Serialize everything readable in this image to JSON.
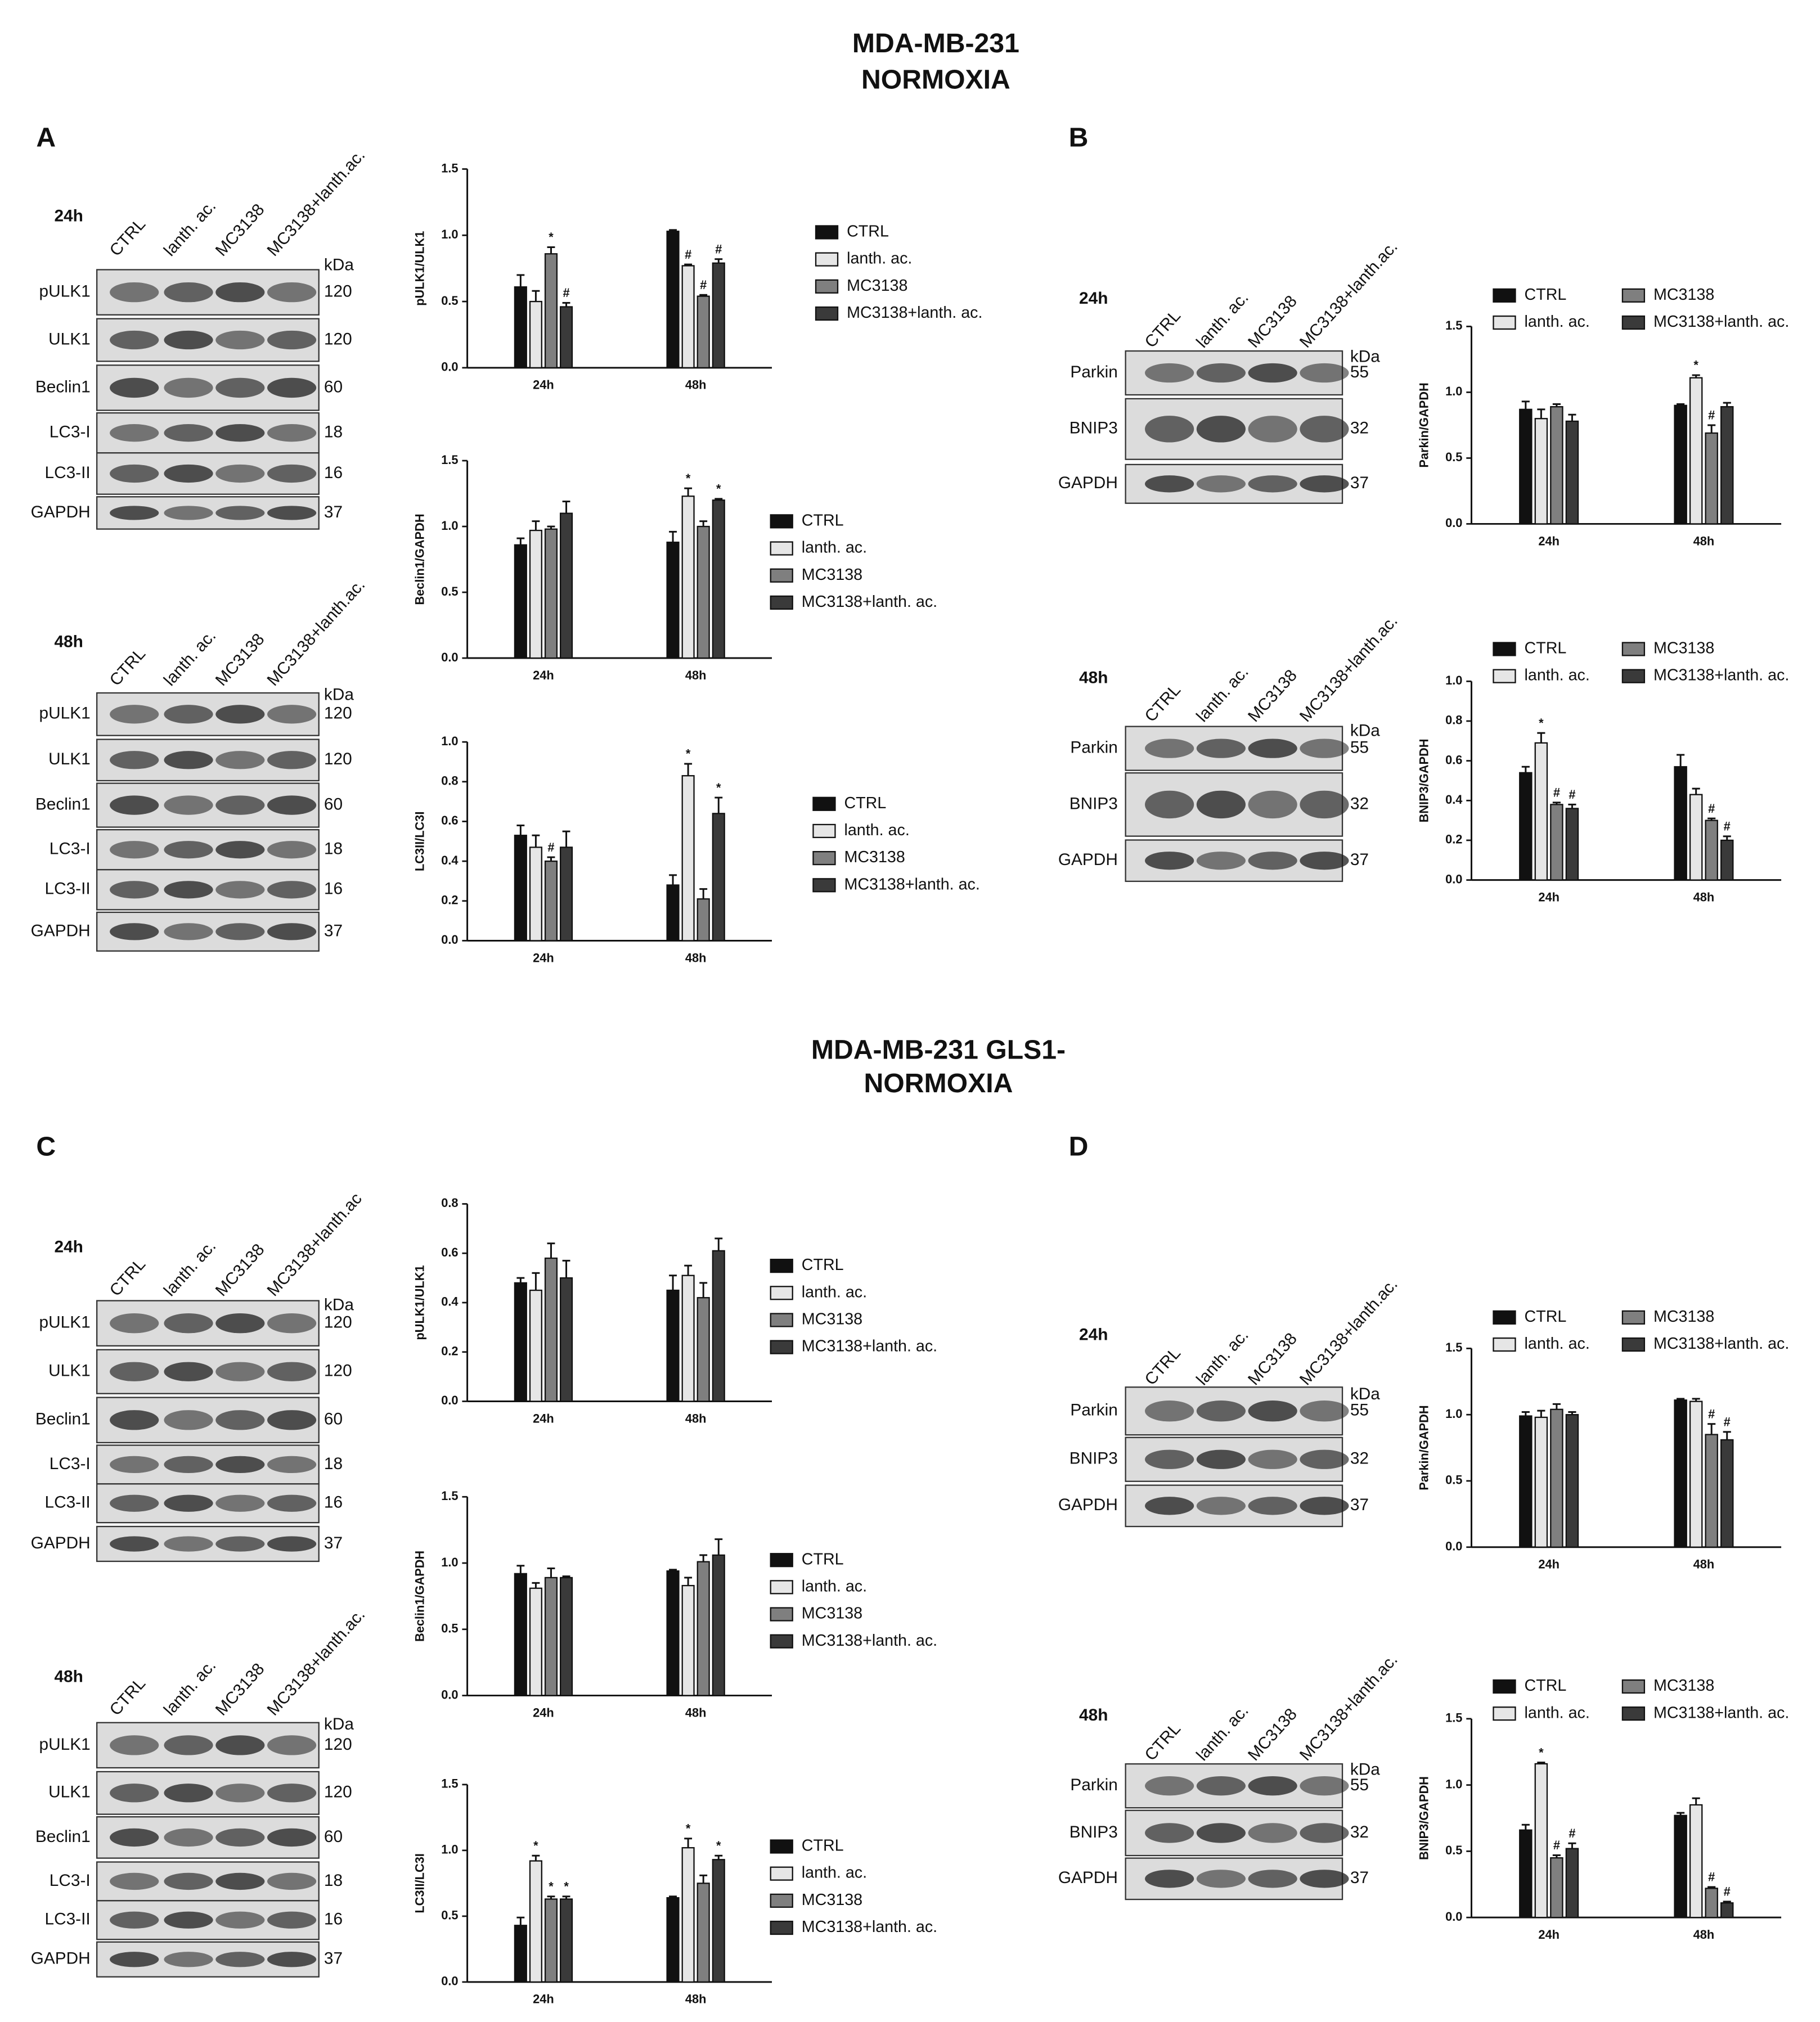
{
  "headings": [
    {
      "lines": [
        "MDA-MB-231",
        "NORMOXIA"
      ]
    },
    {
      "lines": [
        "MDA-MB-231 GLS1-",
        "NORMOXIA"
      ]
    }
  ],
  "panels": [
    "A",
    "B",
    "C",
    "D"
  ],
  "blots": [
    {
      "time": "24h",
      "kda_label": "kDa",
      "lanes": [
        "CTRL",
        "lanth. ac.",
        "MC3138",
        "MC3138+lanth.ac."
      ],
      "rows": [
        {
          "name": "pULK1",
          "kda": 120
        },
        {
          "name": "ULK1",
          "kda": 120
        },
        {
          "name": "Beclin1",
          "kda": 60
        },
        {
          "name": "LC3-I",
          "kda": 18
        },
        {
          "name": "LC3-II",
          "kda": 16
        },
        {
          "name": "GAPDH",
          "kda": 37
        }
      ]
    },
    {
      "time": "48h",
      "kda_label": "kDa",
      "lanes": [
        "CTRL",
        "lanth. ac.",
        "MC3138",
        "MC3138+lanth.ac."
      ],
      "rows": [
        {
          "name": "pULK1",
          "kda": 120
        },
        {
          "name": "ULK1",
          "kda": 120
        },
        {
          "name": "Beclin1",
          "kda": 60
        },
        {
          "name": "LC3-I",
          "kda": 18
        },
        {
          "name": "LC3-II",
          "kda": 16
        },
        {
          "name": "GAPDH",
          "kda": 37
        }
      ]
    },
    {
      "time": "24h",
      "kda_label": "kDa",
      "lanes": [
        "CTRL",
        "lanth. ac.",
        "MC3138",
        "MC3138+lanth.ac."
      ],
      "rows": [
        {
          "name": "Parkin",
          "kda": 55
        },
        {
          "name": "BNIP3",
          "kda": 32
        },
        {
          "name": "GAPDH",
          "kda": 37
        }
      ]
    },
    {
      "time": "48h",
      "kda_label": "kDa",
      "lanes": [
        "CTRL",
        "lanth. ac.",
        "MC3138",
        "MC3138+lanth.ac."
      ],
      "rows": [
        {
          "name": "Parkin",
          "kda": 55
        },
        {
          "name": "BNIP3",
          "kda": 32
        },
        {
          "name": "GAPDH",
          "kda": 37
        }
      ]
    },
    {
      "time": "24h",
      "kda_label": "kDa",
      "lanes": [
        "CTRL",
        "lanth. ac.",
        "MC3138",
        "MC3138+lanth.ac"
      ],
      "rows": [
        {
          "name": "pULK1",
          "kda": 120
        },
        {
          "name": "ULK1",
          "kda": 120
        },
        {
          "name": "Beclin1",
          "kda": 60
        },
        {
          "name": "LC3-I",
          "kda": 18
        },
        {
          "name": "LC3-II",
          "kda": 16
        },
        {
          "name": "GAPDH",
          "kda": 37
        }
      ]
    },
    {
      "time": "48h",
      "kda_label": "kDa",
      "lanes": [
        "CTRL",
        "lanth. ac.",
        "MC3138",
        "MC3138+lanth.ac."
      ],
      "rows": [
        {
          "name": "pULK1",
          "kda": 120
        },
        {
          "name": "ULK1",
          "kda": 120
        },
        {
          "name": "Beclin1",
          "kda": 60
        },
        {
          "name": "LC3-I",
          "kda": 18
        },
        {
          "name": "LC3-II",
          "kda": 16
        },
        {
          "name": "GAPDH",
          "kda": 37
        }
      ]
    },
    {
      "time": "24h",
      "kda_label": "kDa",
      "lanes": [
        "CTRL",
        "lanth. ac.",
        "MC3138",
        "MC3138+lanth.ac."
      ],
      "rows": [
        {
          "name": "Parkin",
          "kda": 55
        },
        {
          "name": "BNIP3",
          "kda": 32
        },
        {
          "name": "GAPDH",
          "kda": 37
        }
      ]
    },
    {
      "time": "48h",
      "kda_label": "kDa",
      "lanes": [
        "CTRL",
        "lanth. ac.",
        "MC3138",
        "MC3138+lanth.ac."
      ],
      "rows": [
        {
          "name": "Parkin",
          "kda": 55
        },
        {
          "name": "BNIP3",
          "kda": 32
        },
        {
          "name": "GAPDH",
          "kda": 37
        }
      ]
    }
  ],
  "chart_data": [
    {
      "type": "bar",
      "y_label": "pULK1/ULK1",
      "categories": [
        "24h",
        "48h"
      ],
      "ylim": [
        0,
        1.5
      ],
      "yticks": [
        {
          "value": 0,
          "label": "0.0"
        },
        0.5,
        {
          "value": 1,
          "label": "1.0"
        },
        1.5
      ],
      "series": [
        {
          "name": "CTRL",
          "color": "#111111",
          "values": [
            0.61,
            1.03
          ],
          "errors": [
            0.09,
            0.01
          ]
        },
        {
          "name": "lanth. ac.",
          "color": "#e6e6e6",
          "values": [
            0.5,
            0.77
          ],
          "errors": [
            0.08,
            0.01
          ],
          "annotations": [
            null,
            "#"
          ]
        },
        {
          "name": "MC3138",
          "color": "#7f7f7f",
          "values": [
            0.86,
            0.54
          ],
          "errors": [
            0.05,
            0.01
          ],
          "annotations": [
            "*",
            "#"
          ]
        },
        {
          "name": "MC3138+lanth. ac.",
          "color": "#3a3a3a",
          "values": [
            0.46,
            0.79
          ],
          "errors": [
            0.03,
            0.03
          ],
          "annotations": [
            "#",
            "#"
          ]
        }
      ]
    },
    {
      "type": "bar",
      "y_label": "Beclin1/GAPDH",
      "categories": [
        "24h",
        "48h"
      ],
      "ylim": [
        0,
        1.5
      ],
      "yticks": [
        {
          "value": 0,
          "label": "0.0"
        },
        0.5,
        {
          "value": 1,
          "label": "1.0"
        },
        1.5
      ],
      "series": [
        {
          "name": "CTRL",
          "color": "#111111",
          "values": [
            0.86,
            0.88
          ],
          "errors": [
            0.05,
            0.08
          ]
        },
        {
          "name": "lanth. ac.",
          "color": "#e6e6e6",
          "values": [
            0.97,
            1.23
          ],
          "errors": [
            0.07,
            0.06
          ],
          "annotations": [
            null,
            "*"
          ]
        },
        {
          "name": "MC3138",
          "color": "#7f7f7f",
          "values": [
            0.98,
            1.0
          ],
          "errors": [
            0.02,
            0.04
          ]
        },
        {
          "name": "MC3138+lanth. ac.",
          "color": "#3a3a3a",
          "values": [
            1.1,
            1.2
          ],
          "errors": [
            0.09,
            0.01
          ],
          "annotations": [
            null,
            "*"
          ]
        }
      ]
    },
    {
      "type": "bar",
      "y_label": "LC3II/LC3I",
      "categories": [
        "24h",
        "48h"
      ],
      "ylim": [
        0,
        1
      ],
      "yticks": [
        {
          "value": 0,
          "label": "0.0"
        },
        0.2,
        0.4,
        0.6,
        0.8,
        {
          "value": 1,
          "label": "1.0"
        }
      ],
      "series": [
        {
          "name": "CTRL",
          "color": "#111111",
          "values": [
            0.53,
            0.28
          ],
          "errors": [
            0.05,
            0.05
          ]
        },
        {
          "name": "lanth. ac.",
          "color": "#e6e6e6",
          "values": [
            0.47,
            0.83
          ],
          "errors": [
            0.06,
            0.06
          ],
          "annotations": [
            null,
            "*"
          ]
        },
        {
          "name": "MC3138",
          "color": "#7f7f7f",
          "values": [
            0.4,
            0.21
          ],
          "errors": [
            0.02,
            0.05
          ],
          "annotations": [
            "#",
            null
          ]
        },
        {
          "name": "MC3138+lanth. ac.",
          "color": "#3a3a3a",
          "values": [
            0.47,
            0.64
          ],
          "errors": [
            0.08,
            0.08
          ],
          "annotations": [
            null,
            "*"
          ]
        }
      ]
    },
    {
      "type": "bar",
      "y_label": "Parkin/GAPDH",
      "categories": [
        "24h",
        "48h"
      ],
      "ylim": [
        0,
        1.5
      ],
      "yticks": [
        {
          "value": 0,
          "label": "0.0"
        },
        0.5,
        {
          "value": 1,
          "label": "1.0"
        },
        1.5
      ],
      "series": [
        {
          "name": "CTRL",
          "color": "#111111",
          "values": [
            0.87,
            0.9
          ],
          "errors": [
            0.06,
            0.01
          ]
        },
        {
          "name": "lanth. ac.",
          "color": "#e6e6e6",
          "values": [
            0.8,
            1.11
          ],
          "errors": [
            0.07,
            0.02
          ],
          "annotations": [
            null,
            "*"
          ]
        },
        {
          "name": "MC3138",
          "color": "#7f7f7f",
          "values": [
            0.89,
            0.69
          ],
          "errors": [
            0.02,
            0.06
          ],
          "annotations": [
            null,
            "#"
          ]
        },
        {
          "name": "MC3138+lanth. ac.",
          "color": "#3a3a3a",
          "values": [
            0.78,
            0.89
          ],
          "errors": [
            0.05,
            0.03
          ]
        }
      ]
    },
    {
      "type": "bar",
      "y_label": "BNIP3/GAPDH",
      "categories": [
        "24h",
        "48h"
      ],
      "ylim": [
        0,
        1
      ],
      "yticks": [
        {
          "value": 0,
          "label": "0.0"
        },
        0.2,
        0.4,
        0.6,
        0.8,
        {
          "value": 1,
          "label": "1.0"
        }
      ],
      "series": [
        {
          "name": "CTRL",
          "color": "#111111",
          "values": [
            0.54,
            0.57
          ],
          "errors": [
            0.03,
            0.06
          ]
        },
        {
          "name": "lanth. ac.",
          "color": "#e6e6e6",
          "values": [
            0.69,
            0.43
          ],
          "errors": [
            0.05,
            0.03
          ],
          "annotations": [
            "*",
            null
          ]
        },
        {
          "name": "MC3138",
          "color": "#7f7f7f",
          "values": [
            0.38,
            0.3
          ],
          "errors": [
            0.01,
            0.01
          ],
          "annotations": [
            "#",
            "#"
          ]
        },
        {
          "name": "MC3138+lanth. ac.",
          "color": "#3a3a3a",
          "values": [
            0.36,
            0.2
          ],
          "errors": [
            0.02,
            0.02
          ],
          "annotations": [
            "#",
            "#"
          ]
        }
      ]
    },
    {
      "type": "bar",
      "y_label": "pULK1/ULK1",
      "categories": [
        "24h",
        "48h"
      ],
      "ylim": [
        0,
        0.8
      ],
      "yticks": [
        {
          "value": 0,
          "label": "0.0"
        },
        0.2,
        0.4,
        0.6,
        0.8
      ],
      "series": [
        {
          "name": "CTRL",
          "color": "#111111",
          "values": [
            0.48,
            0.45
          ],
          "errors": [
            0.02,
            0.06
          ]
        },
        {
          "name": "lanth. ac.",
          "color": "#e6e6e6",
          "values": [
            0.45,
            0.51
          ],
          "errors": [
            0.07,
            0.04
          ]
        },
        {
          "name": "MC3138",
          "color": "#7f7f7f",
          "values": [
            0.58,
            0.42
          ],
          "errors": [
            0.06,
            0.06
          ]
        },
        {
          "name": "MC3138+lanth. ac.",
          "color": "#3a3a3a",
          "values": [
            0.5,
            0.61
          ],
          "errors": [
            0.07,
            0.05
          ]
        }
      ]
    },
    {
      "type": "bar",
      "y_label": "Beclin1/GAPDH",
      "categories": [
        "24h",
        "48h"
      ],
      "ylim": [
        0,
        1.5
      ],
      "yticks": [
        {
          "value": 0,
          "label": "0.0"
        },
        0.5,
        {
          "value": 1,
          "label": "1.0"
        },
        1.5
      ],
      "series": [
        {
          "name": "CTRL",
          "color": "#111111",
          "values": [
            0.92,
            0.94
          ],
          "errors": [
            0.06,
            0.01
          ]
        },
        {
          "name": "lanth. ac.",
          "color": "#e6e6e6",
          "values": [
            0.81,
            0.83
          ],
          "errors": [
            0.04,
            0.06
          ]
        },
        {
          "name": "MC3138",
          "color": "#7f7f7f",
          "values": [
            0.89,
            1.01
          ],
          "errors": [
            0.07,
            0.05
          ]
        },
        {
          "name": "MC3138+lanth. ac.",
          "color": "#3a3a3a",
          "values": [
            0.89,
            1.06
          ],
          "errors": [
            0.01,
            0.12
          ]
        }
      ]
    },
    {
      "type": "bar",
      "y_label": "LC3II/LC3I",
      "categories": [
        "24h",
        "48h"
      ],
      "ylim": [
        0,
        1.5
      ],
      "yticks": [
        {
          "value": 0,
          "label": "0.0"
        },
        0.5,
        {
          "value": 1,
          "label": "1.0"
        },
        1.5
      ],
      "series": [
        {
          "name": "CTRL",
          "color": "#111111",
          "values": [
            0.43,
            0.64
          ],
          "errors": [
            0.06,
            0.01
          ]
        },
        {
          "name": "lanth. ac.",
          "color": "#e6e6e6",
          "values": [
            0.92,
            1.02
          ],
          "errors": [
            0.04,
            0.07
          ],
          "annotations": [
            "*",
            "*"
          ]
        },
        {
          "name": "MC3138",
          "color": "#7f7f7f",
          "values": [
            0.63,
            0.75
          ],
          "errors": [
            0.02,
            0.06
          ],
          "annotations": [
            "*",
            null
          ]
        },
        {
          "name": "MC3138+lanth. ac.",
          "color": "#3a3a3a",
          "values": [
            0.63,
            0.93
          ],
          "errors": [
            0.02,
            0.03
          ],
          "annotations": [
            "*",
            "*"
          ]
        }
      ]
    },
    {
      "type": "bar",
      "y_label": "Parkin/GAPDH",
      "categories": [
        "24h",
        "48h"
      ],
      "ylim": [
        0,
        1.5
      ],
      "yticks": [
        {
          "value": 0,
          "label": "0.0"
        },
        0.5,
        {
          "value": 1,
          "label": "1.0"
        },
        1.5
      ],
      "series": [
        {
          "name": "CTRL",
          "color": "#111111",
          "values": [
            0.99,
            1.11
          ],
          "errors": [
            0.03,
            0.01
          ]
        },
        {
          "name": "lanth. ac.",
          "color": "#e6e6e6",
          "values": [
            0.98,
            1.1
          ],
          "errors": [
            0.05,
            0.02
          ]
        },
        {
          "name": "MC3138",
          "color": "#7f7f7f",
          "values": [
            1.04,
            0.85
          ],
          "errors": [
            0.04,
            0.08
          ],
          "annotations": [
            null,
            "#"
          ]
        },
        {
          "name": "MC3138+lanth. ac.",
          "color": "#3a3a3a",
          "values": [
            1.0,
            0.81
          ],
          "errors": [
            0.02,
            0.06
          ],
          "annotations": [
            null,
            "#"
          ]
        }
      ]
    },
    {
      "type": "bar",
      "y_label": "BNIP3/GAPDH",
      "categories": [
        "24h",
        "48h"
      ],
      "ylim": [
        0,
        1.5
      ],
      "yticks": [
        {
          "value": 0,
          "label": "0.0"
        },
        0.5,
        {
          "value": 1,
          "label": "1.0"
        },
        1.5
      ],
      "series": [
        {
          "name": "CTRL",
          "color": "#111111",
          "values": [
            0.66,
            0.77
          ],
          "errors": [
            0.04,
            0.02
          ]
        },
        {
          "name": "lanth. ac.",
          "color": "#e6e6e6",
          "values": [
            1.16,
            0.85
          ],
          "errors": [
            0.01,
            0.05
          ],
          "annotations": [
            "*",
            null
          ]
        },
        {
          "name": "MC3138",
          "color": "#7f7f7f",
          "values": [
            0.45,
            0.22
          ],
          "errors": [
            0.02,
            0.01
          ],
          "annotations": [
            "#",
            "#"
          ]
        },
        {
          "name": "MC3138+lanth. ac.",
          "color": "#3a3a3a",
          "values": [
            0.52,
            0.11
          ],
          "errors": [
            0.04,
            0.01
          ],
          "annotations": [
            "#",
            "#"
          ]
        }
      ]
    }
  ]
}
